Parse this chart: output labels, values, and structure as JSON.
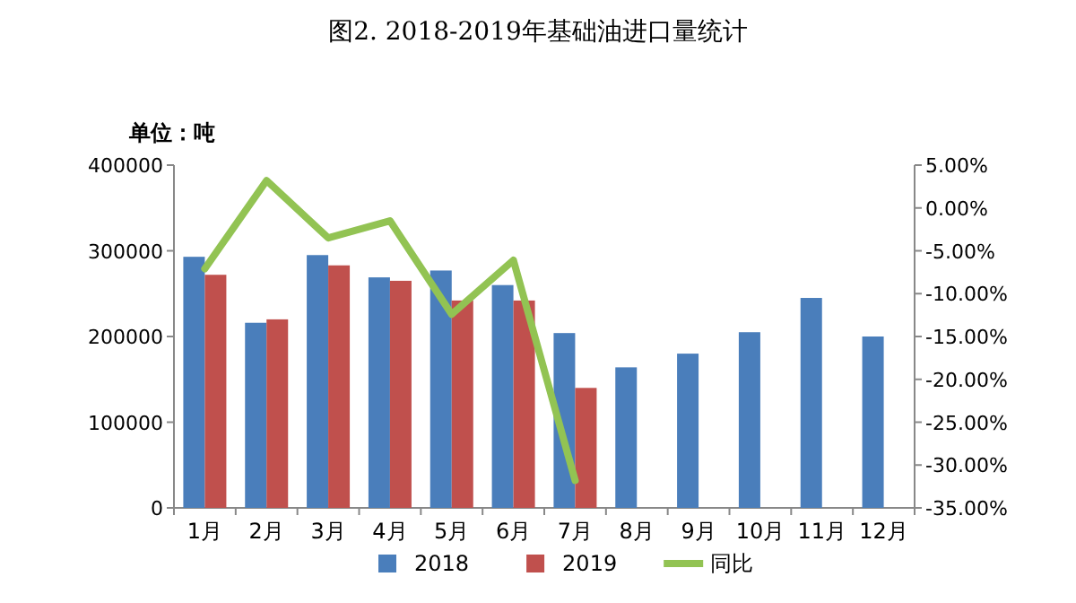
{
  "chart_data": {
    "type": "bar",
    "title": "图2. 2018-2019年基础油进口量统计",
    "ylabel": "单位：吨",
    "categories": [
      "1月",
      "2月",
      "3月",
      "4月",
      "5月",
      "6月",
      "7月",
      "8月",
      "9月",
      "10月",
      "11月",
      "12月"
    ],
    "series": [
      {
        "name": "2018",
        "color": "#4a7ebb",
        "values": [
          293000,
          216000,
          295000,
          269000,
          277000,
          260000,
          204000,
          164000,
          180000,
          205000,
          245000,
          200000
        ]
      },
      {
        "name": "2019",
        "color": "#c0504d",
        "values": [
          272000,
          220000,
          283000,
          265000,
          242000,
          242000,
          140000,
          null,
          null,
          null,
          null,
          null
        ]
      },
      {
        "name": "同比",
        "type": "line",
        "axis": "y2",
        "color": "#92c353",
        "values": [
          -7.1,
          3.2,
          -3.5,
          -1.5,
          -12.4,
          -6.1,
          -31.8,
          null,
          null,
          null,
          null,
          null
        ]
      }
    ],
    "ylim": [
      0,
      400000
    ],
    "yticks": [
      0,
      100000,
      200000,
      300000,
      400000
    ],
    "y2lim": [
      -35,
      5
    ],
    "y2ticks": [
      {
        "value": 5,
        "label": "5.00%"
      },
      {
        "value": 0,
        "label": "0.00%"
      },
      {
        "value": -5,
        "label": "-5.00%"
      },
      {
        "value": -10,
        "label": "-10.00%"
      },
      {
        "value": -15,
        "label": "-15.00%"
      },
      {
        "value": -20,
        "label": "-20.00%"
      },
      {
        "value": -25,
        "label": "-25.00%"
      },
      {
        "value": -30,
        "label": "-30.00%"
      },
      {
        "value": -35,
        "label": "-35.00%"
      }
    ],
    "legend": "bottom",
    "grid": false
  }
}
